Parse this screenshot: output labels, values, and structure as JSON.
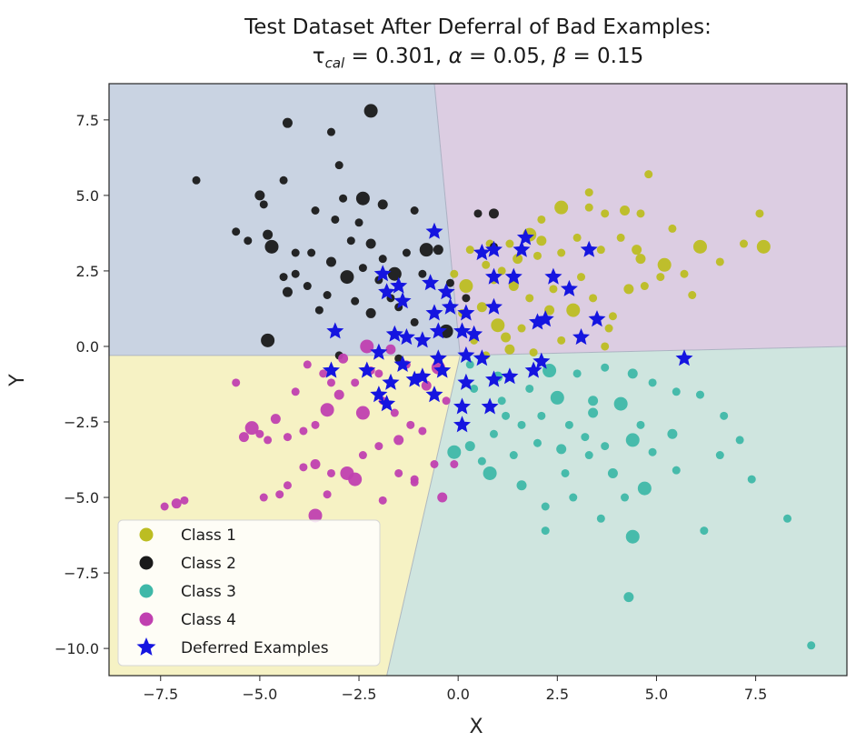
{
  "chart_data": {
    "type": "scatter",
    "title_line1": "Test Dataset After Deferral of Bad Examples:",
    "title_line2_parts": [
      "τ",
      "cal",
      " = 0.301, ",
      "α",
      " = 0.05, ",
      "β",
      " = 0.15"
    ],
    "xlabel": "X",
    "ylabel": "Y",
    "xlim": [
      -8.8,
      9.8
    ],
    "ylim": [
      -10.9,
      8.7
    ],
    "xticks": [
      -7.5,
      -5.0,
      -2.5,
      0.0,
      2.5,
      5.0,
      7.5
    ],
    "yticks": [
      -10.0,
      -7.5,
      -5.0,
      -2.5,
      0.0,
      2.5,
      5.0,
      7.5
    ],
    "xtick_labels": [
      "−7.5",
      "−5.0",
      "−2.5",
      "0.0",
      "2.5",
      "5.0",
      "7.5"
    ],
    "ytick_labels": [
      "−10.0",
      "−7.5",
      "−5.0",
      "−2.5",
      "0.0",
      "2.5",
      "5.0",
      "7.5"
    ],
    "grid": false,
    "legend_position": "lower-left",
    "regions": [
      {
        "class": "Class 2",
        "color": "#c9d3e2",
        "polygon": [
          [
            -8.8,
            8.7
          ],
          [
            -0.6,
            8.7
          ],
          [
            0.05,
            -0.3
          ],
          [
            -8.8,
            -0.3
          ]
        ]
      },
      {
        "class": "Class 1",
        "color": "#dccde2",
        "polygon": [
          [
            -0.6,
            8.7
          ],
          [
            9.8,
            8.7
          ],
          [
            9.8,
            0.0
          ],
          [
            0.05,
            -0.3
          ]
        ]
      },
      {
        "class": "Class 4",
        "color": "#f6f2c4",
        "polygon": [
          [
            -8.8,
            -0.3
          ],
          [
            0.05,
            -0.3
          ],
          [
            -1.8,
            -10.9
          ],
          [
            -8.8,
            -10.9
          ]
        ]
      },
      {
        "class": "Class 3",
        "color": "#cfe5df",
        "polygon": [
          [
            0.05,
            -0.3
          ],
          [
            9.8,
            0.0
          ],
          [
            9.8,
            -10.9
          ],
          [
            -1.8,
            -10.9
          ]
        ]
      }
    ],
    "series": [
      {
        "name": "Class 1",
        "color": "#bcbd22",
        "marker": "circle",
        "points": [
          [
            0.8,
            3.4
          ],
          [
            1.5,
            2.9
          ],
          [
            2.1,
            4.2
          ],
          [
            2.6,
            4.6
          ],
          [
            3.3,
            5.1
          ],
          [
            3.7,
            4.4
          ],
          [
            4.2,
            4.5
          ],
          [
            4.6,
            4.4
          ],
          [
            4.8,
            5.7
          ],
          [
            5.4,
            3.9
          ],
          [
            5.2,
            2.7
          ],
          [
            4.6,
            2.9
          ],
          [
            4.1,
            3.6
          ],
          [
            3.6,
            3.2
          ],
          [
            3.0,
            3.6
          ],
          [
            2.6,
            3.1
          ],
          [
            2.1,
            3.5
          ],
          [
            1.8,
            3.7
          ],
          [
            1.3,
            3.4
          ],
          [
            0.7,
            2.7
          ],
          [
            0.9,
            2.2
          ],
          [
            1.4,
            2.0
          ],
          [
            1.8,
            1.6
          ],
          [
            2.4,
            1.9
          ],
          [
            2.9,
            1.2
          ],
          [
            3.4,
            1.6
          ],
          [
            4.3,
            1.9
          ],
          [
            5.1,
            2.3
          ],
          [
            5.7,
            2.4
          ],
          [
            6.6,
            2.8
          ],
          [
            7.2,
            3.4
          ],
          [
            7.7,
            3.3
          ],
          [
            7.6,
            4.4
          ],
          [
            3.8,
            0.6
          ],
          [
            3.9,
            1.0
          ],
          [
            3.1,
            2.3
          ],
          [
            2.3,
            1.2
          ],
          [
            1.6,
            0.6
          ],
          [
            1.0,
            0.7
          ],
          [
            0.4,
            0.2
          ],
          [
            0.7,
            -0.3
          ],
          [
            1.3,
            -0.1
          ],
          [
            1.9,
            -0.2
          ],
          [
            2.6,
            0.2
          ],
          [
            -0.1,
            2.4
          ],
          [
            0.2,
            2.0
          ],
          [
            0.6,
            1.3
          ],
          [
            0.3,
            3.2
          ],
          [
            1.1,
            2.5
          ],
          [
            2.0,
            3.0
          ],
          [
            3.3,
            4.6
          ],
          [
            4.5,
            3.2
          ],
          [
            6.1,
            3.3
          ],
          [
            5.9,
            1.7
          ],
          [
            4.7,
            2.0
          ],
          [
            3.7,
            0.0
          ],
          [
            1.2,
            0.3
          ],
          [
            0.1,
            1.1
          ]
        ]
      },
      {
        "name": "Class 2",
        "color": "#1a1a1a",
        "marker": "circle",
        "points": [
          [
            -6.6,
            5.5
          ],
          [
            -4.3,
            7.4
          ],
          [
            -3.2,
            7.1
          ],
          [
            -2.2,
            7.8
          ],
          [
            -3.0,
            6.0
          ],
          [
            -4.4,
            5.5
          ],
          [
            -5.0,
            5.0
          ],
          [
            -4.9,
            4.7
          ],
          [
            -3.6,
            4.5
          ],
          [
            -2.9,
            4.9
          ],
          [
            -2.4,
            4.9
          ],
          [
            -1.9,
            4.7
          ],
          [
            -2.5,
            4.1
          ],
          [
            -3.1,
            4.2
          ],
          [
            -5.6,
            3.8
          ],
          [
            -5.3,
            3.5
          ],
          [
            -4.8,
            3.7
          ],
          [
            -4.7,
            3.3
          ],
          [
            -4.1,
            3.1
          ],
          [
            -3.7,
            3.1
          ],
          [
            -2.7,
            3.5
          ],
          [
            -2.2,
            3.4
          ],
          [
            -1.9,
            2.9
          ],
          [
            -1.3,
            3.1
          ],
          [
            -0.8,
            3.2
          ],
          [
            -1.1,
            4.5
          ],
          [
            -3.2,
            2.8
          ],
          [
            -4.1,
            2.4
          ],
          [
            -4.4,
            2.3
          ],
          [
            -3.8,
            2.0
          ],
          [
            -3.3,
            1.7
          ],
          [
            -2.8,
            2.3
          ],
          [
            -2.4,
            2.6
          ],
          [
            -2.0,
            2.2
          ],
          [
            -1.7,
            1.6
          ],
          [
            -1.5,
            1.3
          ],
          [
            -2.2,
            1.1
          ],
          [
            -1.1,
            0.8
          ],
          [
            -0.3,
            0.5
          ],
          [
            -0.9,
            2.4
          ],
          [
            0.5,
            4.4
          ],
          [
            0.9,
            4.4
          ],
          [
            0.9,
            3.3
          ],
          [
            0.2,
            1.6
          ],
          [
            -0.2,
            2.1
          ],
          [
            -4.8,
            0.2
          ],
          [
            -4.3,
            1.8
          ],
          [
            -2.6,
            1.5
          ],
          [
            -3.0,
            -0.3
          ],
          [
            -1.5,
            -0.4
          ],
          [
            -3.5,
            1.2
          ],
          [
            -0.5,
            3.2
          ],
          [
            -1.6,
            2.4
          ]
        ]
      },
      {
        "name": "Class 3",
        "color": "#3fb8a8",
        "marker": "circle",
        "points": [
          [
            0.3,
            -0.6
          ],
          [
            1.0,
            -1.0
          ],
          [
            1.8,
            -1.4
          ],
          [
            2.5,
            -1.7
          ],
          [
            3.0,
            -0.9
          ],
          [
            3.7,
            -0.7
          ],
          [
            4.4,
            -0.9
          ],
          [
            4.9,
            -1.2
          ],
          [
            5.5,
            -1.5
          ],
          [
            6.1,
            -1.6
          ],
          [
            4.1,
            -1.9
          ],
          [
            3.4,
            -2.2
          ],
          [
            2.8,
            -2.6
          ],
          [
            2.1,
            -2.3
          ],
          [
            1.6,
            -2.6
          ],
          [
            0.9,
            -2.9
          ],
          [
            0.3,
            -3.3
          ],
          [
            -0.1,
            -3.5
          ],
          [
            0.6,
            -3.8
          ],
          [
            1.4,
            -3.6
          ],
          [
            2.0,
            -3.2
          ],
          [
            2.6,
            -3.4
          ],
          [
            3.2,
            -3.0
          ],
          [
            3.7,
            -3.3
          ],
          [
            4.4,
            -3.1
          ],
          [
            4.9,
            -3.5
          ],
          [
            5.4,
            -2.9
          ],
          [
            6.6,
            -3.6
          ],
          [
            7.1,
            -3.1
          ],
          [
            7.4,
            -4.4
          ],
          [
            5.5,
            -4.1
          ],
          [
            4.7,
            -4.7
          ],
          [
            4.2,
            -5.0
          ],
          [
            3.6,
            -5.7
          ],
          [
            2.9,
            -5.0
          ],
          [
            2.2,
            -5.3
          ],
          [
            1.6,
            -4.6
          ],
          [
            2.2,
            -6.1
          ],
          [
            4.4,
            -6.3
          ],
          [
            6.2,
            -6.1
          ],
          [
            8.3,
            -5.7
          ],
          [
            4.3,
            -8.3
          ],
          [
            8.9,
            -9.9
          ],
          [
            3.3,
            -3.6
          ],
          [
            1.1,
            -1.8
          ],
          [
            2.3,
            -0.8
          ],
          [
            3.4,
            -1.8
          ],
          [
            4.6,
            -2.6
          ],
          [
            1.2,
            -2.3
          ],
          [
            0.4,
            -1.4
          ],
          [
            2.7,
            -4.2
          ],
          [
            3.9,
            -4.2
          ],
          [
            0.8,
            -4.2
          ],
          [
            6.7,
            -2.3
          ]
        ]
      },
      {
        "name": "Class 4",
        "color": "#c040b0",
        "marker": "circle",
        "points": [
          [
            -7.4,
            -5.3
          ],
          [
            -7.1,
            -5.2
          ],
          [
            -6.9,
            -5.1
          ],
          [
            -5.2,
            -2.7
          ],
          [
            -5.0,
            -2.9
          ],
          [
            -4.8,
            -3.1
          ],
          [
            -4.6,
            -2.4
          ],
          [
            -4.3,
            -3.0
          ],
          [
            -3.9,
            -2.8
          ],
          [
            -3.6,
            -2.6
          ],
          [
            -3.3,
            -2.1
          ],
          [
            -3.0,
            -1.6
          ],
          [
            -2.6,
            -1.2
          ],
          [
            -2.2,
            -0.8
          ],
          [
            -3.8,
            -0.6
          ],
          [
            -3.4,
            -0.9
          ],
          [
            -2.9,
            -0.4
          ],
          [
            -2.4,
            -2.2
          ],
          [
            -1.9,
            -1.8
          ],
          [
            -1.6,
            -2.2
          ],
          [
            -1.2,
            -2.6
          ],
          [
            -1.5,
            -3.1
          ],
          [
            -2.0,
            -3.3
          ],
          [
            -2.4,
            -3.6
          ],
          [
            -2.8,
            -4.2
          ],
          [
            -3.2,
            -4.2
          ],
          [
            -3.6,
            -3.9
          ],
          [
            -3.9,
            -4.0
          ],
          [
            -4.3,
            -4.6
          ],
          [
            -4.9,
            -5.0
          ],
          [
            -3.3,
            -4.9
          ],
          [
            -2.6,
            -4.4
          ],
          [
            -1.5,
            -4.2
          ],
          [
            -1.1,
            -4.5
          ],
          [
            -0.6,
            -3.9
          ],
          [
            -0.1,
            -3.9
          ],
          [
            -0.4,
            -5.0
          ],
          [
            -1.9,
            -5.1
          ],
          [
            -3.6,
            -5.6
          ],
          [
            -2.0,
            -0.9
          ],
          [
            -1.3,
            -0.6
          ],
          [
            -0.8,
            -1.3
          ],
          [
            -0.3,
            -1.8
          ],
          [
            -5.6,
            -1.2
          ],
          [
            -4.1,
            -1.5
          ],
          [
            -2.3,
            0.0
          ],
          [
            -1.7,
            -0.1
          ],
          [
            -3.2,
            -1.2
          ],
          [
            -4.5,
            -4.9
          ],
          [
            -0.9,
            -2.8
          ],
          [
            -1.1,
            -4.4
          ],
          [
            -5.4,
            -3.0
          ],
          [
            -0.5,
            -0.7
          ]
        ]
      },
      {
        "name": "Deferred Examples",
        "color": "#1515e0",
        "marker": "star",
        "points": [
          [
            -0.6,
            3.8
          ],
          [
            0.6,
            3.1
          ],
          [
            0.9,
            3.2
          ],
          [
            1.6,
            3.2
          ],
          [
            1.7,
            3.6
          ],
          [
            3.3,
            3.2
          ],
          [
            -1.9,
            2.4
          ],
          [
            -1.5,
            2.0
          ],
          [
            -0.7,
            2.1
          ],
          [
            -0.3,
            1.8
          ],
          [
            0.9,
            2.3
          ],
          [
            1.4,
            2.3
          ],
          [
            2.4,
            2.3
          ],
          [
            2.8,
            1.9
          ],
          [
            -1.8,
            1.8
          ],
          [
            -1.4,
            1.5
          ],
          [
            -0.6,
            1.1
          ],
          [
            -0.2,
            1.3
          ],
          [
            0.2,
            1.1
          ],
          [
            0.9,
            1.3
          ],
          [
            2.0,
            0.8
          ],
          [
            2.2,
            0.9
          ],
          [
            3.5,
            0.9
          ],
          [
            -3.1,
            0.5
          ],
          [
            -1.6,
            0.4
          ],
          [
            -1.3,
            0.3
          ],
          [
            -0.9,
            0.2
          ],
          [
            -0.5,
            0.5
          ],
          [
            0.1,
            0.5
          ],
          [
            0.4,
            0.4
          ],
          [
            -2.0,
            -0.2
          ],
          [
            -1.4,
            -0.6
          ],
          [
            -0.5,
            -0.4
          ],
          [
            0.2,
            -0.3
          ],
          [
            0.6,
            -0.4
          ],
          [
            -1.1,
            -1.1
          ],
          [
            -0.9,
            -1.0
          ],
          [
            -0.4,
            -0.8
          ],
          [
            -3.2,
            -0.8
          ],
          [
            -2.3,
            -0.8
          ],
          [
            -1.7,
            -1.2
          ],
          [
            0.2,
            -1.2
          ],
          [
            0.9,
            -1.1
          ],
          [
            1.3,
            -1.0
          ],
          [
            1.9,
            -0.8
          ],
          [
            2.1,
            -0.5
          ],
          [
            -2.0,
            -1.6
          ],
          [
            -1.8,
            -1.9
          ],
          [
            -0.6,
            -1.6
          ],
          [
            0.1,
            -2.0
          ],
          [
            0.8,
            -2.0
          ],
          [
            0.1,
            -2.6
          ],
          [
            5.7,
            -0.4
          ],
          [
            3.1,
            0.3
          ]
        ]
      }
    ],
    "legend": [
      "Class 1",
      "Class 2",
      "Class 3",
      "Class 4",
      "Deferred Examples"
    ]
  }
}
